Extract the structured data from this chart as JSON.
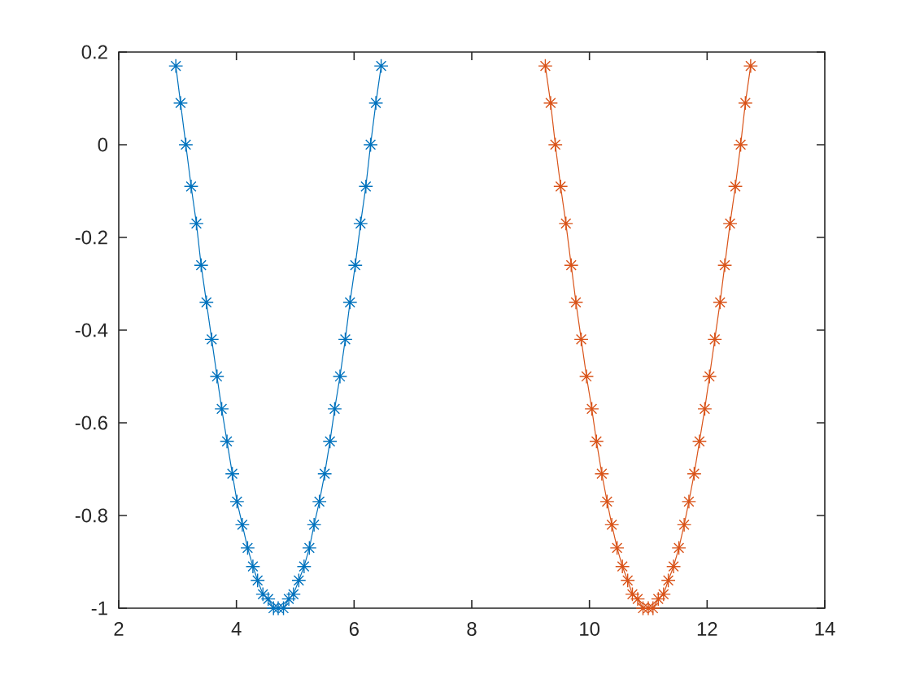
{
  "chart_data": {
    "type": "line",
    "marker": "cross",
    "line_style": "solid",
    "xlim": [
      2,
      14
    ],
    "ylim": [
      -1,
      0.2
    ],
    "xticks": [
      2,
      4,
      6,
      8,
      10,
      12,
      14
    ],
    "yticks": [
      -1,
      -0.8,
      -0.6,
      -0.4,
      -0.2,
      0,
      0.2
    ],
    "series": [
      {
        "color": "#0072bd",
        "x": [
          2.97,
          3.05,
          3.14,
          3.23,
          3.32,
          3.4,
          3.49,
          3.58,
          3.67,
          3.75,
          3.84,
          3.93,
          4.01,
          4.1,
          4.19,
          4.28,
          4.36,
          4.45,
          4.54,
          4.63,
          4.71,
          4.8,
          4.89,
          4.97,
          5.06,
          5.15,
          5.24,
          5.32,
          5.41,
          5.5,
          5.59,
          5.67,
          5.76,
          5.85,
          5.93,
          6.02,
          6.11,
          6.2,
          6.28,
          6.37,
          6.46
        ],
        "values": [
          0.17,
          0.09,
          0,
          -0.09,
          -0.17,
          -0.26,
          -0.34,
          -0.42,
          -0.5,
          -0.57,
          -0.64,
          -0.71,
          -0.77,
          -0.82,
          -0.87,
          -0.91,
          -0.94,
          -0.97,
          -0.98,
          -1.0,
          -1.0,
          -1.0,
          -0.98,
          -0.97,
          -0.94,
          -0.91,
          -0.87,
          -0.82,
          -0.77,
          -0.71,
          -0.64,
          -0.57,
          -0.5,
          -0.42,
          -0.34,
          -0.26,
          -0.17,
          -0.09,
          0,
          0.09,
          0.17
        ]
      },
      {
        "color": "#d95319",
        "x": [
          9.25,
          9.34,
          9.42,
          9.51,
          9.6,
          9.69,
          9.77,
          9.86,
          9.95,
          10.04,
          10.12,
          10.21,
          10.3,
          10.38,
          10.47,
          10.56,
          10.65,
          10.73,
          10.82,
          10.91,
          11.0,
          11.08,
          11.17,
          11.26,
          11.34,
          11.43,
          11.52,
          11.61,
          11.69,
          11.78,
          11.87,
          11.96,
          12.04,
          12.13,
          12.22,
          12.3,
          12.39,
          12.48,
          12.57,
          12.65,
          12.74
        ],
        "values": [
          0.17,
          0.09,
          0,
          -0.09,
          -0.17,
          -0.26,
          -0.34,
          -0.42,
          -0.5,
          -0.57,
          -0.64,
          -0.71,
          -0.77,
          -0.82,
          -0.87,
          -0.91,
          -0.94,
          -0.97,
          -0.98,
          -1.0,
          -1.0,
          -1.0,
          -0.98,
          -0.97,
          -0.94,
          -0.91,
          -0.87,
          -0.82,
          -0.77,
          -0.71,
          -0.64,
          -0.57,
          -0.5,
          -0.42,
          -0.34,
          -0.26,
          -0.17,
          -0.09,
          0,
          0.09,
          0.17
        ]
      }
    ]
  }
}
